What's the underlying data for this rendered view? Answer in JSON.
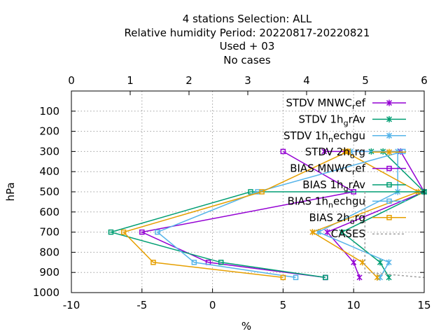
{
  "chart_data": {
    "type": "line",
    "title_lines": [
      "4 stations Selection: ALL",
      "Relative humidity  Period: 20220817-20220821",
      "Used   + 03",
      "No cases"
    ],
    "xlabel": "%",
    "ylabel": "hPa",
    "xlim": [
      -10,
      15
    ],
    "x2lim": [
      0,
      6
    ],
    "ylim": [
      1000,
      0
    ],
    "y_reversed": true,
    "x_ticks": [
      -10,
      -5,
      0,
      5,
      10,
      15
    ],
    "x2_ticks": [
      0,
      1,
      2,
      3,
      4,
      5,
      6
    ],
    "y_ticks": [
      100,
      200,
      300,
      400,
      500,
      600,
      700,
      800,
      900,
      1000
    ],
    "grid": true,
    "legend_position": "top-right",
    "series": [
      {
        "name": "STDV MNWC_ref",
        "legend_main": "STDV MNWC",
        "legend_sub": "r",
        "legend_rest": "ef",
        "axis": "x2",
        "marker": "x",
        "color": "#9400d3",
        "x": [
          4.3,
          5.6,
          6.0,
          4.35,
          4.8,
          4.9
        ],
        "y": [
          300,
          300,
          500,
          700,
          850,
          925
        ]
      },
      {
        "name": "STDV 1h_grAv",
        "legend_main": "STDV 1h",
        "legend_sub": "g",
        "legend_rest": "rAv",
        "axis": "x2",
        "marker": "x",
        "color": "#009e73",
        "x": [
          5.1,
          5.3,
          6.0,
          4.6,
          5.25,
          5.4
        ],
        "y": [
          300,
          300,
          500,
          700,
          850,
          925
        ]
      },
      {
        "name": "STDV 1h_nechgu",
        "legend_main": "STDV 1h",
        "legend_sub": "n",
        "legend_rest": "echgu",
        "axis": "x2",
        "marker": "x",
        "color": "#56b4e9",
        "x": [
          4.75,
          5.55,
          5.55,
          4.2,
          5.4,
          5.25
        ],
        "y": [
          300,
          300,
          500,
          700,
          850,
          925
        ]
      },
      {
        "name": "STDV 2h_org",
        "legend_main": "STDV 2h",
        "legend_sub": "o",
        "legend_rest": "rg",
        "axis": "x2",
        "marker": "x",
        "color": "#e69f00",
        "x": [
          4.7,
          4.65,
          5.9,
          4.1,
          4.95,
          5.2
        ],
        "y": [
          300,
          300,
          500,
          700,
          850,
          925
        ]
      },
      {
        "name": "BIAS MNWC_ref",
        "legend_main": "BIAS MNWC",
        "legend_sub": "r",
        "legend_rest": "ef",
        "axis": "x",
        "marker": "square",
        "color": "#9400d3",
        "x": [
          5.0,
          10.0,
          -5.0,
          -0.3,
          8.0
        ],
        "y": [
          300,
          500,
          700,
          850,
          925
        ]
      },
      {
        "name": "BIAS 1h_grAv",
        "legend_main": "BIAS 1h",
        "legend_sub": "g",
        "legend_rest": "rAv",
        "axis": "x",
        "marker": "square",
        "color": "#009e73",
        "x": [
          15.0,
          2.7,
          -7.2,
          0.6,
          8.0
        ],
        "y": [
          500,
          500,
          700,
          850,
          925
        ]
      },
      {
        "name": "BIAS 1h_nechgu",
        "legend_main": "BIAS 1h",
        "legend_sub": "n",
        "legend_rest": "echgu",
        "axis": "x",
        "marker": "square",
        "color": "#56b4e9",
        "x": [
          13.5,
          3.2,
          -3.9,
          -1.3,
          5.9
        ],
        "y": [
          300,
          500,
          700,
          850,
          925
        ]
      },
      {
        "name": "BIAS 2h_org",
        "legend_main": "BIAS 2h",
        "legend_sub": "o",
        "legend_rest": "rg",
        "axis": "x",
        "marker": "square",
        "color": "#e69f00",
        "x": [
          9.6,
          3.5,
          -6.3,
          -4.2,
          5.0
        ],
        "y": [
          300,
          500,
          700,
          850,
          925
        ]
      },
      {
        "name": "CASES",
        "legend_main": "CASES",
        "legend_sub": "",
        "legend_rest": "",
        "axis": "x",
        "marker": "none",
        "color": "#a0a0a0",
        "dash": true,
        "x": [
          10.8,
          10.8,
          10.8,
          10.8,
          10.8,
          15.0
        ],
        "y": [
          500,
          580,
          700,
          800,
          900,
          925
        ]
      }
    ]
  }
}
